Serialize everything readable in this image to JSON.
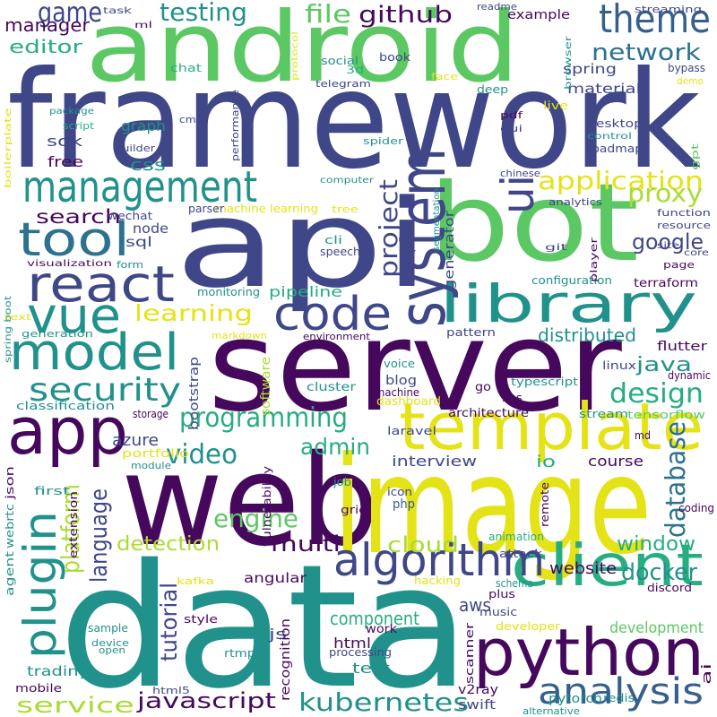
{
  "palette": {
    "purple": "#46085c",
    "indigo": "#3f4788",
    "blue": "#355f8d",
    "slate": "#2c728e",
    "teal": "#21918c",
    "seagreen": "#27ad81",
    "green": "#5cc863",
    "lime": "#aadc32",
    "yellow": "#e4e318"
  },
  "words": [
    {
      "text": "framework",
      "color": "indigo"
    },
    {
      "text": "android",
      "color": "green"
    },
    {
      "text": "api",
      "color": "indigo"
    },
    {
      "text": "bot",
      "color": "green"
    },
    {
      "text": "server",
      "color": "purple"
    },
    {
      "text": "web",
      "color": "purple"
    },
    {
      "text": "image",
      "color": "yellow"
    },
    {
      "text": "data",
      "color": "teal"
    },
    {
      "text": "template",
      "color": "yellow"
    },
    {
      "text": "management",
      "color": "teal"
    },
    {
      "text": "library",
      "color": "teal"
    },
    {
      "text": "system",
      "color": "indigo"
    },
    {
      "text": "python",
      "color": "purple"
    },
    {
      "text": "client",
      "color": "seagreen"
    },
    {
      "text": "app",
      "color": "purple"
    },
    {
      "text": "model",
      "color": "teal"
    },
    {
      "text": "code",
      "color": "indigo"
    },
    {
      "text": "react",
      "color": "indigo"
    },
    {
      "text": "vue",
      "color": "teal"
    },
    {
      "text": "plugin",
      "color": "teal"
    },
    {
      "text": "algorithm",
      "color": "indigo"
    },
    {
      "text": "tool",
      "color": "slate"
    },
    {
      "text": "theme",
      "color": "blue"
    },
    {
      "text": "ui",
      "color": "indigo"
    },
    {
      "text": "analysis",
      "color": "blue"
    },
    {
      "text": "security",
      "color": "teal"
    },
    {
      "text": "programming",
      "color": "seagreen"
    },
    {
      "text": "testing",
      "color": "teal"
    },
    {
      "text": "game",
      "color": "indigo"
    },
    {
      "text": "file",
      "color": "green"
    },
    {
      "text": "github",
      "color": "purple"
    },
    {
      "text": "network",
      "color": "slate"
    },
    {
      "text": "application",
      "color": "yellow"
    },
    {
      "text": "proxy",
      "color": "lime"
    },
    {
      "text": "google",
      "color": "indigo"
    },
    {
      "text": "project",
      "color": "indigo"
    },
    {
      "text": "learning",
      "color": "yellow"
    },
    {
      "text": "design",
      "color": "seagreen"
    },
    {
      "text": "distributed",
      "color": "teal"
    },
    {
      "text": "java",
      "color": "teal"
    },
    {
      "text": "video",
      "color": "teal"
    },
    {
      "text": "admin",
      "color": "seagreen"
    },
    {
      "text": "database",
      "color": "slate"
    },
    {
      "text": "engine",
      "color": "green"
    },
    {
      "text": "multi",
      "color": "purple"
    },
    {
      "text": "cloud",
      "color": "lime"
    },
    {
      "text": "language",
      "color": "indigo"
    },
    {
      "text": "platform",
      "color": "lime"
    },
    {
      "text": "detection",
      "color": "lime"
    },
    {
      "text": "window",
      "color": "seagreen"
    },
    {
      "text": "docker",
      "color": "teal"
    },
    {
      "text": "aws",
      "color": "indigo"
    },
    {
      "text": "website",
      "color": "purple"
    },
    {
      "text": "component",
      "color": "seagreen"
    },
    {
      "text": "tutorial",
      "color": "indigo"
    },
    {
      "text": "javascript",
      "color": "purple"
    },
    {
      "text": "kubernetes",
      "color": "teal"
    },
    {
      "text": "service",
      "color": "lime"
    },
    {
      "text": "search",
      "color": "purple"
    },
    {
      "text": "css",
      "color": "teal"
    },
    {
      "text": "editor",
      "color": "seagreen"
    },
    {
      "text": "manager",
      "color": "purple"
    },
    {
      "text": "azure",
      "color": "indigo"
    },
    {
      "text": "interview",
      "color": "indigo"
    },
    {
      "text": "course",
      "color": "purple"
    },
    {
      "text": "io",
      "color": "seagreen"
    },
    {
      "text": "development",
      "color": "green"
    },
    {
      "text": "trading",
      "color": "teal"
    },
    {
      "text": "test",
      "color": "teal"
    },
    {
      "text": "html",
      "color": "purple"
    },
    {
      "text": "pipeline",
      "color": "seagreen"
    },
    {
      "text": "sdk",
      "color": "indigo"
    },
    {
      "text": "free",
      "color": "purple"
    },
    {
      "text": "graph",
      "color": "teal"
    },
    {
      "text": "material",
      "color": "indigo"
    },
    {
      "text": "spring",
      "color": "indigo"
    },
    {
      "text": "example",
      "color": "purple"
    },
    {
      "text": "flutter",
      "color": "purple"
    },
    {
      "text": "architecture",
      "color": "purple"
    },
    {
      "text": "angular",
      "color": "purple"
    },
    {
      "text": "js",
      "color": "indigo"
    },
    {
      "text": "bootstrap",
      "color": "indigo"
    },
    {
      "text": "software",
      "color": "lime"
    },
    {
      "text": "recognition",
      "color": "purple"
    },
    {
      "text": "swift",
      "color": "indigo"
    },
    {
      "text": "v2ray",
      "color": "purple"
    },
    {
      "text": "pytorch",
      "color": "teal"
    },
    {
      "text": "terraform",
      "color": "purple"
    },
    {
      "text": "configuration",
      "color": "teal"
    },
    {
      "text": "node",
      "color": "indigo"
    },
    {
      "text": "sql",
      "color": "indigo"
    },
    {
      "text": "generator",
      "color": "indigo"
    },
    {
      "text": "linux",
      "color": "indigo"
    },
    {
      "text": "typescript",
      "color": "teal"
    },
    {
      "text": "dynamic",
      "color": "purple"
    },
    {
      "text": "blog",
      "color": "indigo"
    },
    {
      "text": "go",
      "color": "purple"
    },
    {
      "text": "cluster",
      "color": "teal"
    },
    {
      "text": "machine",
      "color": "purple"
    },
    {
      "text": "dashboard",
      "color": "yellow"
    },
    {
      "text": "xss",
      "color": "purple"
    },
    {
      "text": "stream",
      "color": "teal"
    },
    {
      "text": "md",
      "color": "purple"
    },
    {
      "text": "tensorflow",
      "color": "green"
    },
    {
      "text": "laravel",
      "color": "indigo"
    },
    {
      "text": "vulnerability",
      "color": "purple"
    },
    {
      "text": "job",
      "color": "teal"
    },
    {
      "text": "icon",
      "color": "indigo"
    },
    {
      "text": "php",
      "color": "blue"
    },
    {
      "text": "remote",
      "color": "purple"
    },
    {
      "text": "coding",
      "color": "purple"
    },
    {
      "text": "grid",
      "color": "purple"
    },
    {
      "text": "animation",
      "color": "seagreen"
    },
    {
      "text": "attack",
      "color": "indigo"
    },
    {
      "text": "discord",
      "color": "purple"
    },
    {
      "text": "schema",
      "color": "teal"
    },
    {
      "text": "hacking",
      "color": "yellow"
    },
    {
      "text": "plus",
      "color": "purple"
    },
    {
      "text": "developer",
      "color": "yellow"
    },
    {
      "text": "music",
      "color": "indigo"
    },
    {
      "text": "work",
      "color": "purple"
    },
    {
      "text": "processing",
      "color": "indigo"
    },
    {
      "text": "scanner",
      "color": "purple"
    },
    {
      "text": "redis",
      "color": "teal"
    },
    {
      "text": "ai",
      "color": "purple"
    },
    {
      "text": "alternative",
      "color": "teal"
    },
    {
      "text": "html5",
      "color": "indigo"
    },
    {
      "text": "mobile",
      "color": "purple"
    },
    {
      "text": "rtmp",
      "color": "teal"
    },
    {
      "text": "open",
      "color": "teal"
    },
    {
      "text": "device",
      "color": "teal"
    },
    {
      "text": "sample",
      "color": "teal"
    },
    {
      "text": "style",
      "color": "purple"
    },
    {
      "text": "kafka",
      "color": "yellow"
    },
    {
      "text": "agent",
      "color": "teal"
    },
    {
      "text": "webrtc",
      "color": "teal"
    },
    {
      "text": "json",
      "color": "purple"
    },
    {
      "text": "first",
      "color": "teal"
    },
    {
      "text": "extension",
      "color": "purple"
    },
    {
      "text": "portfolio",
      "color": "yellow"
    },
    {
      "text": "module",
      "color": "teal"
    },
    {
      "text": "storage",
      "color": "purple"
    },
    {
      "text": "classification",
      "color": "teal"
    },
    {
      "text": "voice",
      "color": "teal"
    },
    {
      "text": "environment",
      "color": "purple"
    },
    {
      "text": "pattern",
      "color": "indigo"
    },
    {
      "text": "markdown",
      "color": "yellow"
    },
    {
      "text": "generation",
      "color": "teal"
    },
    {
      "text": "text",
      "color": "yellow"
    },
    {
      "text": "monitoring",
      "color": "teal"
    },
    {
      "text": "form",
      "color": "teal"
    },
    {
      "text": "visualization",
      "color": "purple"
    },
    {
      "text": "spring boot",
      "color": "teal"
    },
    {
      "text": "speech",
      "color": "indigo"
    },
    {
      "text": "cli",
      "color": "teal"
    },
    {
      "text": "machine learning",
      "color": "yellow"
    },
    {
      "text": "parser",
      "color": "indigo"
    },
    {
      "text": "wechat",
      "color": "indigo"
    },
    {
      "text": "tree",
      "color": "yellow"
    },
    {
      "text": "segmentation",
      "color": "teal"
    },
    {
      "text": "analytics",
      "color": "indigo"
    },
    {
      "text": "computer",
      "color": "teal"
    },
    {
      "text": "chinese",
      "color": "indigo"
    },
    {
      "text": "spider",
      "color": "teal"
    },
    {
      "text": "roadmap",
      "color": "indigo"
    },
    {
      "text": "desktop",
      "color": "indigo"
    },
    {
      "text": "control",
      "color": "teal"
    },
    {
      "text": "gui",
      "color": "indigo"
    },
    {
      "text": "pdf",
      "color": "purple"
    },
    {
      "text": "live",
      "color": "yellow"
    },
    {
      "text": "deep",
      "color": "teal"
    },
    {
      "text": "face",
      "color": "yellow"
    },
    {
      "text": "book",
      "color": "indigo"
    },
    {
      "text": "social",
      "color": "teal"
    },
    {
      "text": "3d",
      "color": "seagreen"
    },
    {
      "text": "telegram",
      "color": "indigo"
    },
    {
      "text": "protocol",
      "color": "yellow"
    },
    {
      "text": "readme",
      "color": "indigo"
    },
    {
      "text": "task",
      "color": "indigo"
    },
    {
      "text": "ml",
      "color": "purple"
    },
    {
      "text": "chat",
      "color": "seagreen"
    },
    {
      "text": "cms",
      "color": "indigo"
    },
    {
      "text": "performance",
      "color": "indigo"
    },
    {
      "text": "starter",
      "color": "indigo"
    },
    {
      "text": "package",
      "color": "teal"
    },
    {
      "text": "script",
      "color": "seagreen"
    },
    {
      "text": "builder",
      "color": "indigo"
    },
    {
      "text": "boilerplate",
      "color": "yellow"
    },
    {
      "text": "browser",
      "color": "teal"
    },
    {
      "text": "streaming",
      "color": "indigo"
    },
    {
      "text": "bypass",
      "color": "indigo"
    },
    {
      "text": "demo",
      "color": "yellow"
    },
    {
      "text": "gpt",
      "color": "green"
    },
    {
      "text": "function",
      "color": "indigo"
    },
    {
      "text": "resource",
      "color": "indigo"
    },
    {
      "text": "git",
      "color": "indigo"
    },
    {
      "text": "player",
      "color": "purple"
    },
    {
      "text": "site",
      "color": "indigo"
    },
    {
      "text": "core",
      "color": "indigo"
    },
    {
      "text": "page",
      "color": "purple"
    }
  ]
}
